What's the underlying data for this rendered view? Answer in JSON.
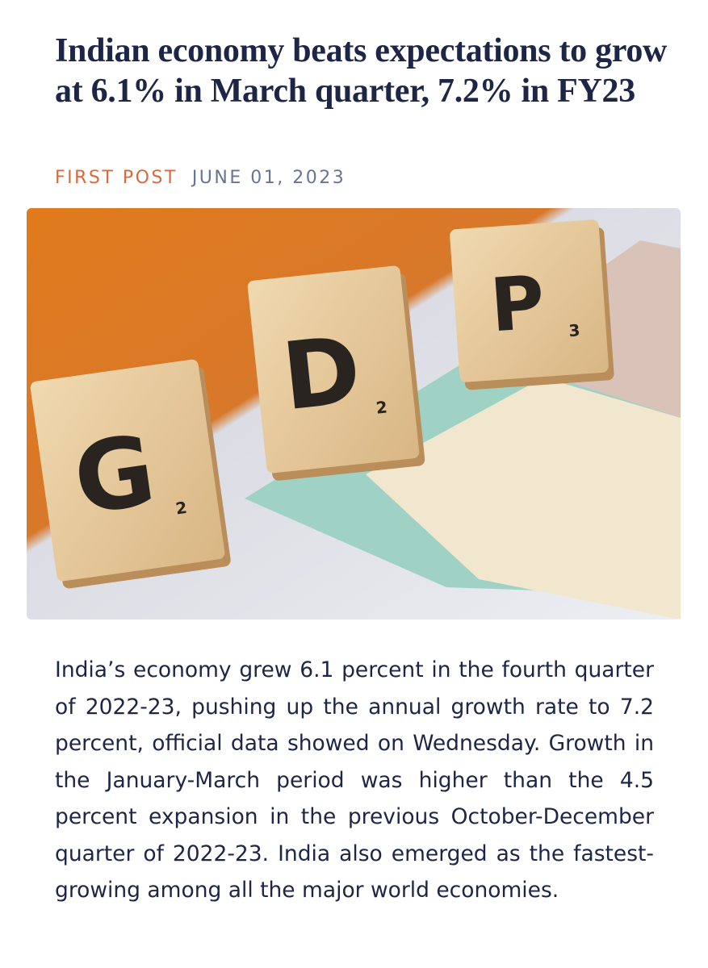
{
  "article": {
    "title": "Indian economy beats expectations to grow at 6.1% in March quarter, 7.2% in FY23",
    "source": "FIRST POST",
    "date": "JUNE 01, 2023",
    "image": {
      "tiles": [
        {
          "letter": "G",
          "score": "2"
        },
        {
          "letter": "D",
          "score": "2"
        },
        {
          "letter": "P",
          "score": "3"
        }
      ]
    },
    "body": "India’s economy grew 6.1 percent in the fourth quarter of 2022-23, pushing up the annual growth rate to 7.2 percent, official data showed on Wednesday. Growth in the January-March period was higher than the 4.5 percent expansion in the previous October-December quarter of 2022-23. India also emerged as the fastest-growing among all the major world economies."
  }
}
